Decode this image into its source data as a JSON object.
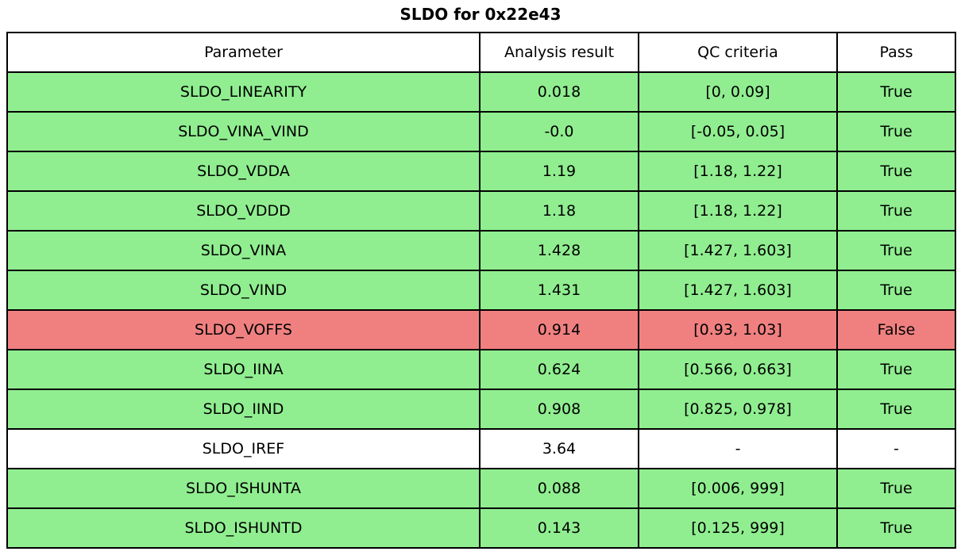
{
  "title": "SLDO for 0x22e43",
  "colors": {
    "pass": "#90EE90",
    "fail": "#F08080",
    "none": "#FFFFFF",
    "border": "#000000",
    "text": "#000000"
  },
  "chart_data": {
    "type": "table",
    "title": "SLDO for 0x22e43",
    "columns": [
      "Parameter",
      "Analysis result",
      "QC criteria",
      "Pass"
    ],
    "legend_position": "none",
    "grid": true,
    "rows": [
      {
        "parameter": "SLDO_LINEARITY",
        "result": "0.018",
        "criteria": "[0, 0.09]",
        "pass": "True",
        "status": "pass"
      },
      {
        "parameter": "SLDO_VINA_VIND",
        "result": "-0.0",
        "criteria": "[-0.05, 0.05]",
        "pass": "True",
        "status": "pass"
      },
      {
        "parameter": "SLDO_VDDA",
        "result": "1.19",
        "criteria": "[1.18, 1.22]",
        "pass": "True",
        "status": "pass"
      },
      {
        "parameter": "SLDO_VDDD",
        "result": "1.18",
        "criteria": "[1.18, 1.22]",
        "pass": "True",
        "status": "pass"
      },
      {
        "parameter": "SLDO_VINA",
        "result": "1.428",
        "criteria": "[1.427, 1.603]",
        "pass": "True",
        "status": "pass"
      },
      {
        "parameter": "SLDO_VIND",
        "result": "1.431",
        "criteria": "[1.427, 1.603]",
        "pass": "True",
        "status": "pass"
      },
      {
        "parameter": "SLDO_VOFFS",
        "result": "0.914",
        "criteria": "[0.93, 1.03]",
        "pass": "False",
        "status": "fail"
      },
      {
        "parameter": "SLDO_IINA",
        "result": "0.624",
        "criteria": "[0.566, 0.663]",
        "pass": "True",
        "status": "pass"
      },
      {
        "parameter": "SLDO_IIND",
        "result": "0.908",
        "criteria": "[0.825, 0.978]",
        "pass": "True",
        "status": "pass"
      },
      {
        "parameter": "SLDO_IREF",
        "result": "3.64",
        "criteria": "-",
        "pass": "-",
        "status": "none"
      },
      {
        "parameter": "SLDO_ISHUNTA",
        "result": "0.088",
        "criteria": "[0.006, 999]",
        "pass": "True",
        "status": "pass"
      },
      {
        "parameter": "SLDO_ISHUNTD",
        "result": "0.143",
        "criteria": "[0.125, 999]",
        "pass": "True",
        "status": "pass"
      }
    ]
  }
}
